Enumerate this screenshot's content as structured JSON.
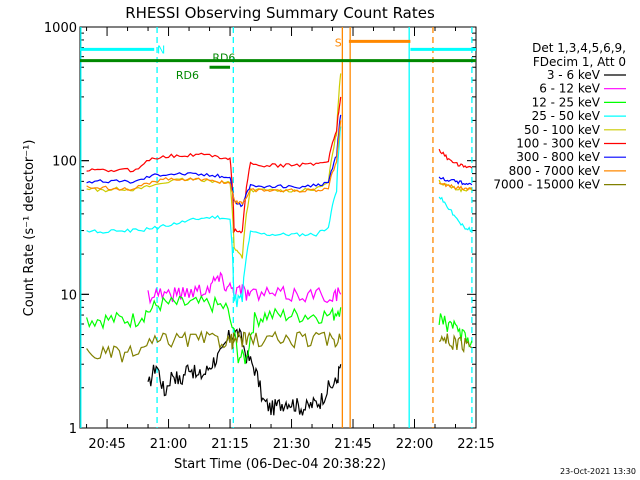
{
  "footer": {
    "timestamp": "23-Oct-2021 13:30"
  },
  "chart_data": {
    "type": "line",
    "title": "RHESSI Observing Summary Count Rates",
    "xlabel": "Start Time (06-Dec-04 20:38:22)",
    "ylabel": "Count Rate (s⁻¹ detector⁻¹)",
    "yscale": "log",
    "xlim": [
      38.4,
      135.0
    ],
    "ylim": [
      1,
      1000
    ],
    "x_unit": "minutes after 20:00 UT",
    "x_ticks": [
      {
        "value": 45,
        "label": "20:45"
      },
      {
        "value": 60,
        "label": "21:00"
      },
      {
        "value": 75,
        "label": "21:15"
      },
      {
        "value": 90,
        "label": "21:30"
      },
      {
        "value": 105,
        "label": "21:45"
      },
      {
        "value": 120,
        "label": "22:00"
      },
      {
        "value": 135,
        "label": "22:15"
      }
    ],
    "y_ticks": [
      {
        "value": 1,
        "label": "1"
      },
      {
        "value": 10,
        "label": "10"
      },
      {
        "value": 100,
        "label": "100"
      },
      {
        "value": 1000,
        "label": "1000"
      }
    ],
    "legend": {
      "position": "right",
      "header": [
        "Det 1,3,4,5,6,9,",
        "FDecim 1, Att 0"
      ]
    },
    "series": [
      {
        "name": "3 - 6 keV",
        "color": "#000000",
        "x": [
          55,
          57,
          59,
          61,
          63,
          65,
          67,
          69,
          71,
          73,
          75,
          77,
          79,
          81,
          83,
          85,
          87,
          89,
          91,
          93,
          95,
          97,
          99,
          101,
          102
        ],
        "y": [
          2.0,
          3.0,
          1.8,
          2.6,
          2.2,
          3.0,
          2.4,
          2.6,
          3.2,
          3.6,
          5.0,
          5.2,
          3.5,
          2.8,
          1.6,
          1.4,
          1.5,
          1.6,
          1.5,
          1.4,
          1.5,
          1.6,
          2.0,
          2.2,
          3.0
        ]
      },
      {
        "name": "6 - 12 keV",
        "color": "#ff00ff",
        "x": [
          55,
          58,
          61,
          64,
          67,
          70,
          72,
          74,
          76,
          78,
          80,
          84,
          88,
          92,
          96,
          100,
          102
        ],
        "y": [
          10,
          10.5,
          10,
          10.5,
          10.8,
          11.5,
          13.5,
          12,
          11,
          10.8,
          10,
          10,
          10,
          10,
          10,
          10,
          10
        ]
      },
      {
        "name": "12 - 25 keV",
        "color": "#00ff00",
        "x": [
          40,
          44,
          48,
          52,
          55,
          58,
          62,
          66,
          70,
          74,
          77,
          79,
          81,
          84,
          88,
          92,
          96,
          100,
          102
        ],
        "y": [
          6.5,
          6.5,
          6.5,
          6.5,
          7.5,
          8.5,
          8.5,
          8.5,
          8.5,
          8,
          3.5,
          3.3,
          6.5,
          7,
          7,
          7,
          7,
          7,
          8
        ]
      },
      {
        "name": "25 - 50 keV",
        "color": "#00ffff",
        "x": [
          40,
          44,
          48,
          52,
          56,
          60,
          64,
          68,
          72,
          75,
          76,
          78,
          80,
          84,
          88,
          92,
          96,
          99,
          101,
          102
        ],
        "y": [
          30,
          29,
          30,
          30,
          31,
          33,
          35,
          37,
          38,
          36,
          9,
          9,
          29,
          28,
          28,
          28,
          28,
          32,
          60,
          180
        ]
      },
      {
        "name": "50 - 100 keV",
        "color": "#cccc00",
        "x": [
          40,
          44,
          48,
          52,
          56,
          60,
          64,
          68,
          72,
          75,
          76,
          78,
          80,
          84,
          88,
          92,
          96,
          99,
          101,
          102
        ],
        "y": [
          62,
          60,
          62,
          61,
          65,
          70,
          72,
          72,
          70,
          68,
          22,
          19,
          60,
          60,
          60,
          60,
          61,
          68,
          160,
          450
        ]
      },
      {
        "name": "100 - 300 keV",
        "color": "#ff0000",
        "x": [
          40,
          44,
          48,
          52,
          56,
          60,
          64,
          68,
          72,
          75,
          76,
          78,
          80,
          84,
          88,
          92,
          96,
          99,
          101,
          102
        ],
        "y": [
          85,
          84,
          85,
          85,
          105,
          108,
          110,
          111,
          107,
          104,
          30,
          29,
          95,
          92,
          92,
          93,
          95,
          100,
          170,
          300
        ]
      },
      {
        "name": "300 - 800 keV",
        "color": "#0000ff",
        "x": [
          40,
          44,
          48,
          52,
          56,
          60,
          64,
          68,
          72,
          75,
          76,
          78,
          80,
          84,
          88,
          92,
          96,
          99,
          101,
          102
        ],
        "y": [
          70,
          70,
          70,
          70,
          78,
          80,
          80,
          79,
          77,
          75,
          50,
          46,
          65,
          64,
          64,
          64,
          65,
          68,
          110,
          220
        ]
      },
      {
        "name": "800 - 7000 keV",
        "color": "#ff8800",
        "x": [
          40,
          44,
          48,
          52,
          56,
          60,
          64,
          68,
          72,
          75,
          76,
          78,
          80,
          84,
          88,
          92,
          96,
          99,
          101,
          102
        ],
        "y": [
          63,
          63,
          62,
          62,
          70,
          73,
          73,
          72,
          70,
          68,
          50,
          48,
          60,
          60,
          60,
          60,
          60,
          63,
          100,
          200
        ]
      },
      {
        "name": "7000 - 15000 keV",
        "color": "#808000",
        "x": [
          40,
          44,
          48,
          52,
          56,
          60,
          64,
          68,
          72,
          75,
          76,
          78,
          80,
          84,
          88,
          92,
          96,
          100,
          102
        ],
        "y": [
          3.6,
          3.6,
          3.6,
          3.6,
          4.3,
          4.6,
          4.6,
          4.6,
          4.6,
          4.5,
          4.6,
          4.6,
          4.6,
          4.6,
          4.6,
          4.6,
          4.6,
          4.6,
          4.6
        ]
      }
    ],
    "series_after_gap": [
      {
        "name": "3 - 6 keV",
        "color": "#000000",
        "x": [],
        "y": []
      },
      {
        "name": "6 - 12 keV",
        "color": "#ff00ff",
        "x": [],
        "y": []
      },
      {
        "name": "12 - 25 keV",
        "color": "#00ff00",
        "x": [
          126,
          128,
          130,
          132,
          134
        ],
        "y": [
          6.5,
          6,
          5.5,
          5,
          4.5
        ]
      },
      {
        "name": "25 - 50 keV",
        "color": "#00ffff",
        "x": [
          126,
          128,
          130,
          132,
          134
        ],
        "y": [
          55,
          45,
          38,
          32,
          30
        ]
      },
      {
        "name": "50 - 100 keV",
        "color": "#cccc00",
        "x": [
          126,
          128,
          130,
          132,
          134
        ],
        "y": [
          70,
          65,
          62,
          60,
          60
        ]
      },
      {
        "name": "100 - 300 keV",
        "color": "#ff0000",
        "x": [
          126,
          128,
          130,
          132,
          134
        ],
        "y": [
          120,
          105,
          95,
          90,
          88
        ]
      },
      {
        "name": "300 - 800 keV",
        "color": "#0000ff",
        "x": [
          126,
          128,
          130,
          132,
          134
        ],
        "y": [
          75,
          72,
          70,
          68,
          66
        ]
      },
      {
        "name": "800 - 7000 keV",
        "color": "#ff8800",
        "x": [
          126,
          128,
          130,
          132,
          134
        ],
        "y": [
          68,
          65,
          63,
          62,
          62
        ]
      },
      {
        "name": "7000 - 15000 keV",
        "color": "#808000",
        "x": [
          126,
          128,
          130,
          132,
          134
        ],
        "y": [
          4.6,
          4.5,
          4.3,
          4.2,
          4.0
        ]
      }
    ],
    "flag_bars": [
      {
        "label": "N",
        "color": "#00ffff",
        "y": 680,
        "segments": [
          [
            38.4,
            56.5
          ],
          [
            119,
            135
          ]
        ]
      },
      {
        "label": "S",
        "color": "#ff8800",
        "y": 780,
        "segments": [
          [
            104,
            119
          ]
        ]
      },
      {
        "label": "RD6",
        "color": "#008800",
        "y": 560,
        "segments": [
          [
            38.4,
            135
          ]
        ]
      },
      {
        "label": "RD6",
        "color": "#008800",
        "y": 500,
        "segments": [
          [
            70,
            75
          ]
        ]
      }
    ],
    "vlines": [
      {
        "x": 38.6,
        "color": "#00ffff",
        "dash": false
      },
      {
        "x": 57.2,
        "color": "#00ffff",
        "dash": true
      },
      {
        "x": 75.8,
        "color": "#00ffff",
        "dash": true
      },
      {
        "x": 102.4,
        "color": "#ff8800",
        "dash": false
      },
      {
        "x": 104.3,
        "color": "#ff8800",
        "dash": false
      },
      {
        "x": 118.7,
        "color": "#00ffff",
        "dash": false
      },
      {
        "x": 124.5,
        "color": "#ff8800",
        "dash": true
      },
      {
        "x": 134.0,
        "color": "#00ffff",
        "dash": true
      }
    ]
  }
}
